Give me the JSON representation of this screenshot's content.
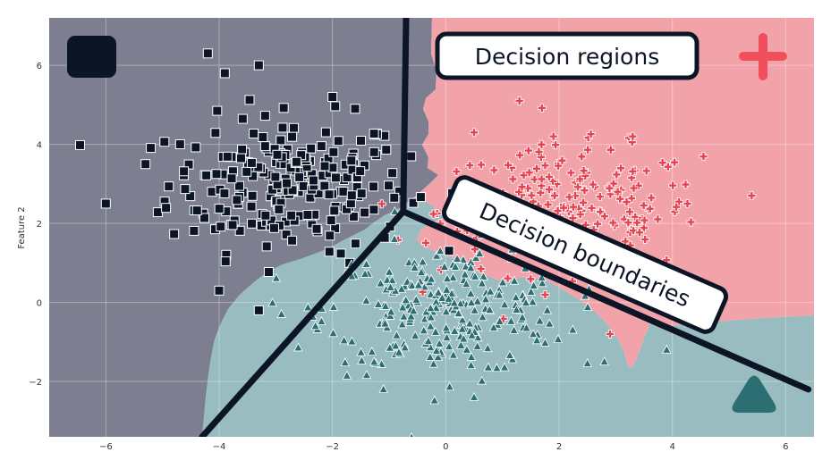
{
  "chart_data": {
    "type": "scatter",
    "title": "",
    "xlabel": "",
    "ylabel": "Feature 2",
    "xlim": [
      -7,
      6.5
    ],
    "ylim": [
      -3.4,
      7.2
    ],
    "x_ticks": [
      -6,
      -4,
      -2,
      0,
      2,
      4,
      6
    ],
    "y_ticks": [
      -2,
      0,
      2,
      4,
      6
    ],
    "x_tick_labels": [
      "−6",
      "−4",
      "−2",
      "0",
      "2",
      "4",
      "6"
    ],
    "y_tick_labels": [
      "−2",
      "0",
      "2",
      "4",
      "6"
    ],
    "grid": true,
    "series": [
      {
        "marker": "square",
        "color": "#0c1526",
        "region_color": "#7d7f91",
        "center": [
          -2.8,
          3.0
        ],
        "spread": [
          1.05,
          0.85
        ],
        "count": 230,
        "points": [
          [
            -4.2,
            6.3
          ],
          [
            -3.3,
            6.0
          ],
          [
            -3.9,
            5.8
          ],
          [
            -2.0,
            5.2
          ],
          [
            -1.6,
            4.9
          ],
          [
            -6.0,
            2.5
          ],
          [
            -5.3,
            3.5
          ],
          [
            -1.7,
            1.0
          ],
          [
            -4.0,
            0.3
          ],
          [
            -3.3,
            -0.2
          ]
        ]
      },
      {
        "marker": "plus",
        "color": "#e8424f",
        "region_color": "#f2a3aa",
        "center": [
          2.2,
          2.3
        ],
        "spread": [
          1.15,
          0.8
        ],
        "count": 220,
        "points": [
          [
            1.3,
            5.1
          ],
          [
            0.5,
            4.3
          ],
          [
            1.9,
            4.2
          ],
          [
            3.3,
            4.2
          ],
          [
            5.4,
            2.7
          ],
          [
            2.9,
            -0.8
          ],
          [
            0.2,
            1.8
          ]
        ]
      },
      {
        "marker": "triangle",
        "color": "#2b6f72",
        "region_color": "#99bcc0",
        "center": [
          0.0,
          -0.2
        ],
        "spread": [
          1.05,
          0.8
        ],
        "count": 260,
        "points": [
          [
            -2.9,
            -0.3
          ],
          [
            -2.3,
            -0.6
          ],
          [
            -1.1,
            -2.2
          ],
          [
            0.5,
            -2.4
          ],
          [
            3.9,
            -1.2
          ],
          [
            2.8,
            -1.5
          ],
          [
            -0.9,
            2.3
          ]
        ]
      }
    ],
    "boundaries": [
      [
        [
          -0.7,
          7.2
        ],
        [
          -0.75,
          2.3
        ]
      ],
      [
        [
          -0.75,
          2.3
        ],
        [
          -4.3,
          -3.4
        ]
      ],
      [
        [
          -0.75,
          2.3
        ],
        [
          6.4,
          -2.2
        ]
      ]
    ]
  },
  "annotations": {
    "regions_label": "Decision regions",
    "boundaries_label": "Decision boundaries"
  },
  "legend_icons": [
    "square-icon",
    "plus-icon",
    "triangle-icon"
  ]
}
